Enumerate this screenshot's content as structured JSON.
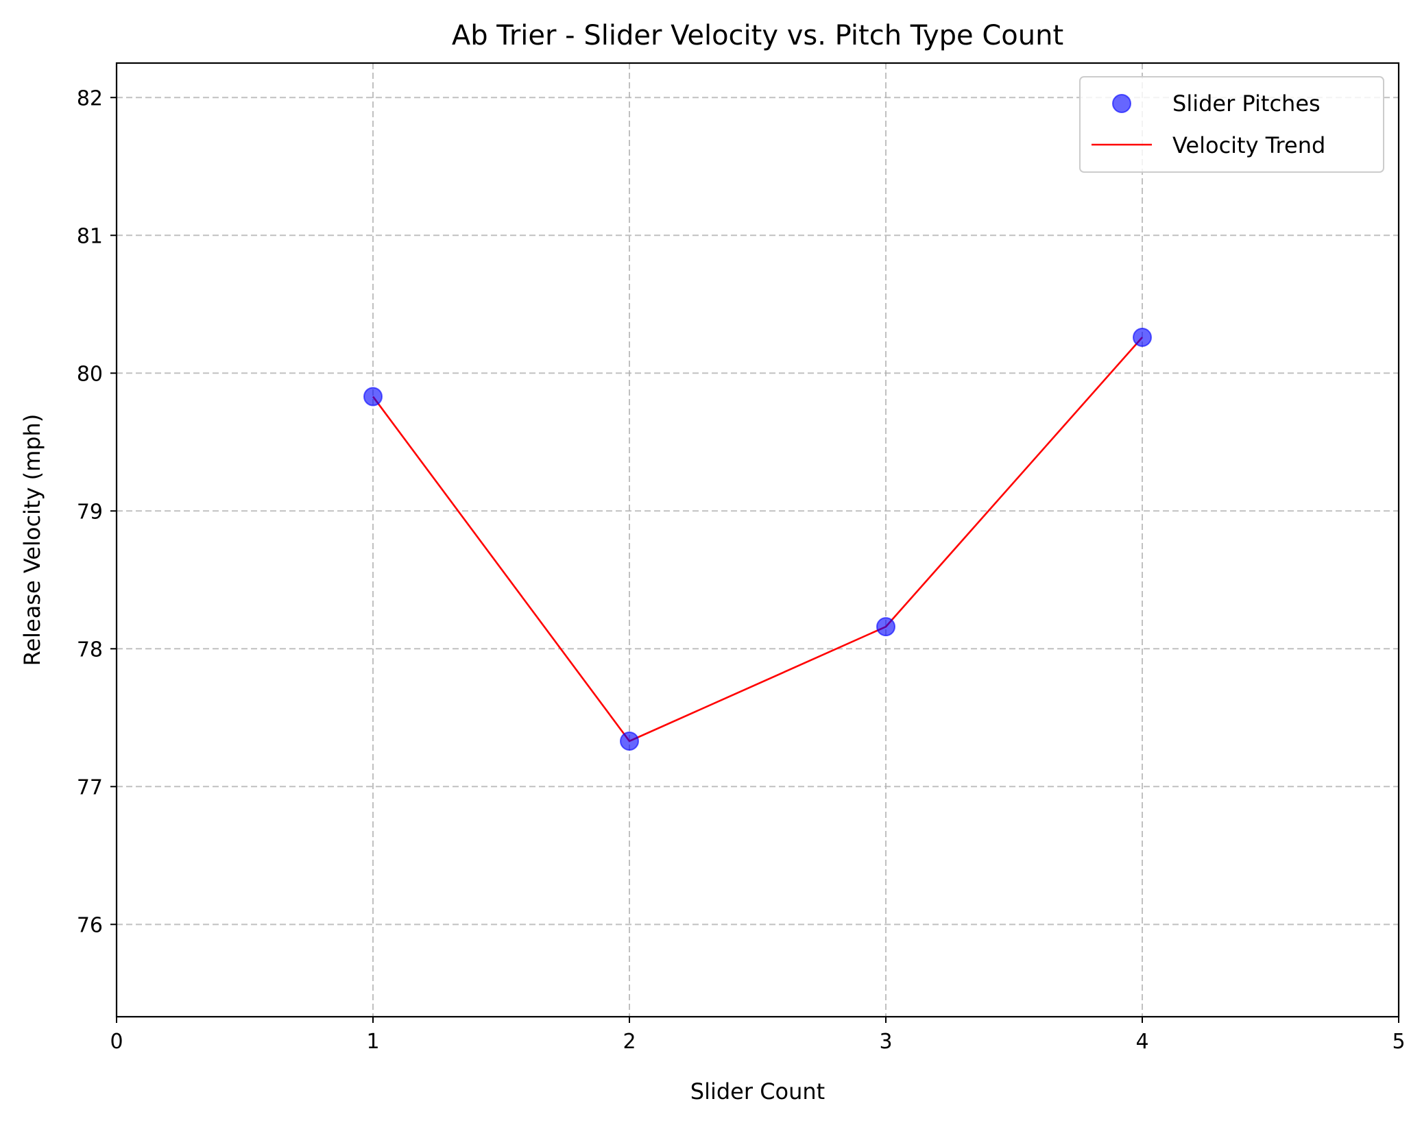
{
  "chart_data": {
    "type": "scatter",
    "title": "Ab Trier - Slider Velocity vs. Pitch Type Count",
    "xlabel": "Slider Count",
    "ylabel": "Release Velocity (mph)",
    "xlim": [
      0,
      5
    ],
    "ylim": [
      75.33,
      82.25
    ],
    "xticks": [
      0,
      1,
      2,
      3,
      4,
      5
    ],
    "yticks": [
      76,
      77,
      78,
      79,
      80,
      81,
      82
    ],
    "grid": true,
    "legend_position": "top-right",
    "series": [
      {
        "name": "Slider Pitches",
        "kind": "scatter",
        "color": "#0000ff",
        "x": [
          1,
          2,
          3,
          4
        ],
        "y": [
          79.83,
          77.33,
          78.16,
          80.26
        ]
      },
      {
        "name": "Velocity Trend",
        "kind": "line",
        "color": "#ff0000",
        "x": [
          1,
          2,
          3,
          4
        ],
        "y": [
          79.83,
          77.33,
          78.16,
          80.26
        ]
      }
    ]
  }
}
